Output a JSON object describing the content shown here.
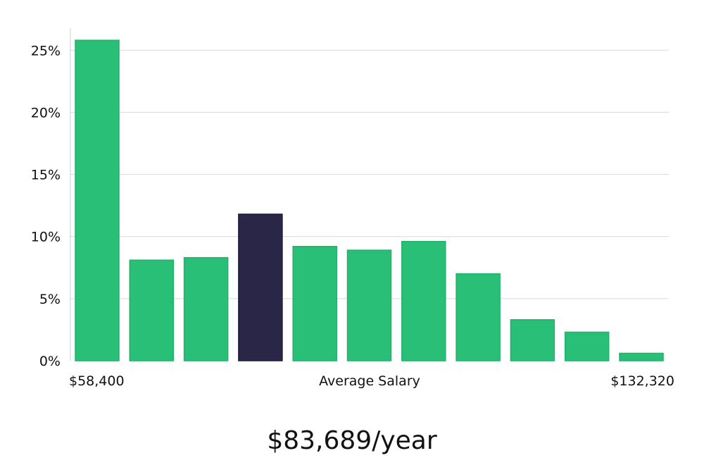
{
  "chart_data": {
    "type": "bar",
    "title": "",
    "xlabel": "Average Salary",
    "ylabel": "",
    "x_range_labels": {
      "min": "$58,400",
      "max": "$132,320"
    },
    "y_ticks": [
      "0%",
      "5%",
      "10%",
      "15%",
      "20%",
      "25%"
    ],
    "ylim": [
      0,
      27
    ],
    "grid": "horizontal",
    "values": [
      25.8,
      8.1,
      8.3,
      11.8,
      9.2,
      8.9,
      9.6,
      7.0,
      3.3,
      2.3,
      0.6
    ],
    "highlight_index": 3,
    "colors": {
      "bar": "#2abf76",
      "bar_stroke": "#22b06a",
      "highlight": "#2a2647",
      "grid": "#d9d9d9",
      "axis": "#cccccc"
    }
  },
  "summary": {
    "average_salary_text": "$83,689/year"
  }
}
